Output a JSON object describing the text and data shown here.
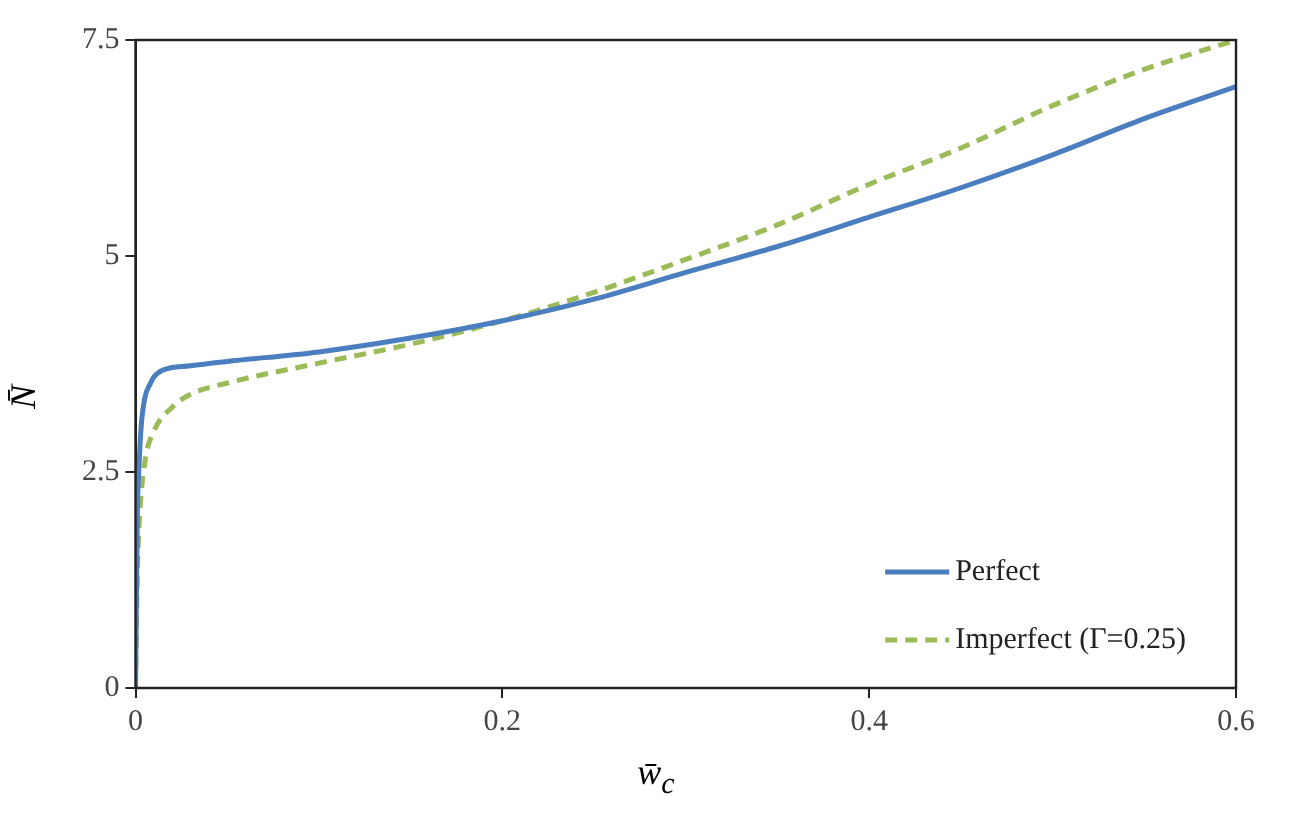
{
  "chart_data": {
    "type": "line",
    "xlabel": "w̄$_{c}$",
    "ylabel": "N̄",
    "xlim": [
      0,
      0.6
    ],
    "ylim": [
      0,
      7.5
    ],
    "xticks": [
      0,
      0.2,
      0.4,
      0.6
    ],
    "yticks": [
      0,
      2.5,
      5,
      7.5
    ],
    "grid": false,
    "legend": "bottom right",
    "marker": "none",
    "series": [
      {
        "name": "Perfect",
        "color": "#4a7ebf",
        "line_style": "solid",
        "x": [
          0,
          0.001,
          0.002,
          0.003,
          0.005,
          0.008,
          0.01,
          0.015,
          0.03,
          0.05,
          0.1,
          0.15,
          0.2,
          0.25,
          0.3,
          0.35,
          0.4,
          0.45,
          0.5,
          0.55,
          0.6
        ],
        "values": [
          0,
          2.0,
          2.6,
          3.0,
          3.35,
          3.52,
          3.6,
          3.68,
          3.73,
          3.78,
          3.89,
          4.05,
          4.25,
          4.5,
          4.81,
          5.11,
          5.45,
          5.79,
          6.17,
          6.59,
          6.96
        ]
      },
      {
        "name": "Imperfect (Γ=0.25)",
        "color": "#9bbb59",
        "line_style": "dashed",
        "x": [
          0,
          0.001,
          0.002,
          0.005,
          0.01,
          0.02,
          0.03,
          0.05,
          0.1,
          0.15,
          0.2,
          0.25,
          0.3,
          0.35,
          0.4,
          0.45,
          0.5,
          0.55,
          0.6
        ],
        "values": [
          0,
          1.3,
          1.9,
          2.6,
          2.97,
          3.25,
          3.4,
          3.53,
          3.76,
          3.98,
          4.25,
          4.58,
          4.96,
          5.36,
          5.83,
          6.25,
          6.74,
          7.16,
          7.5
        ]
      }
    ]
  }
}
